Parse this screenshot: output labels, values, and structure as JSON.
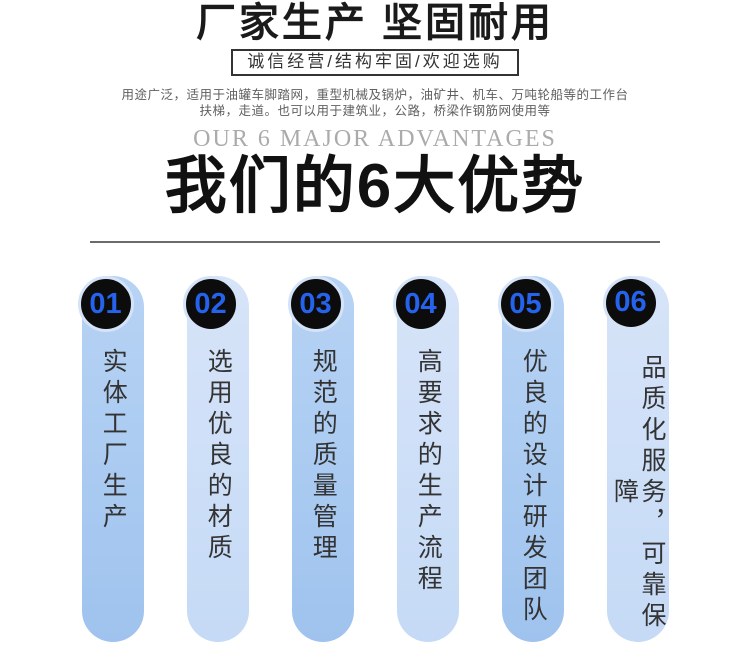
{
  "header": {
    "title": "厂家生产 坚固耐用",
    "slogan": "诚信经营/结构牢固/欢迎选购",
    "description_line1": "用途广泛，适用于油罐车脚踏网，重型机械及锅炉，油矿井、机车、万吨轮船等的工作台",
    "description_line2": "扶梯，走道。也可以用于建筑业，公路，桥梁作钢筋网使用等",
    "subtitle_en": "OUR 6 MAJOR ADVANTAGES",
    "subtitle_cn": "我们的6大优势"
  },
  "advantages": [
    {
      "number": "01",
      "text": "实体工厂生产"
    },
    {
      "number": "02",
      "text": "选用优良的材质"
    },
    {
      "number": "03",
      "text": "规范的质量管理"
    },
    {
      "number": "04",
      "text": "高要求的生产流程"
    },
    {
      "number": "05",
      "text": "优良的设计研发团队"
    },
    {
      "number": "06",
      "text": "品质化服务，可靠保障"
    }
  ],
  "colors": {
    "number_blue": "#2563ed",
    "circle_black": "#0c0c0c",
    "circle_ring": "#d4e3f8",
    "pill_odd_top": "#b7d3f4",
    "pill_odd_bottom": "#9fc3ee",
    "pill_even_top": "#d7e4f9",
    "pill_even_bottom": "#c5daf6",
    "divider": "#6b6b6b"
  }
}
